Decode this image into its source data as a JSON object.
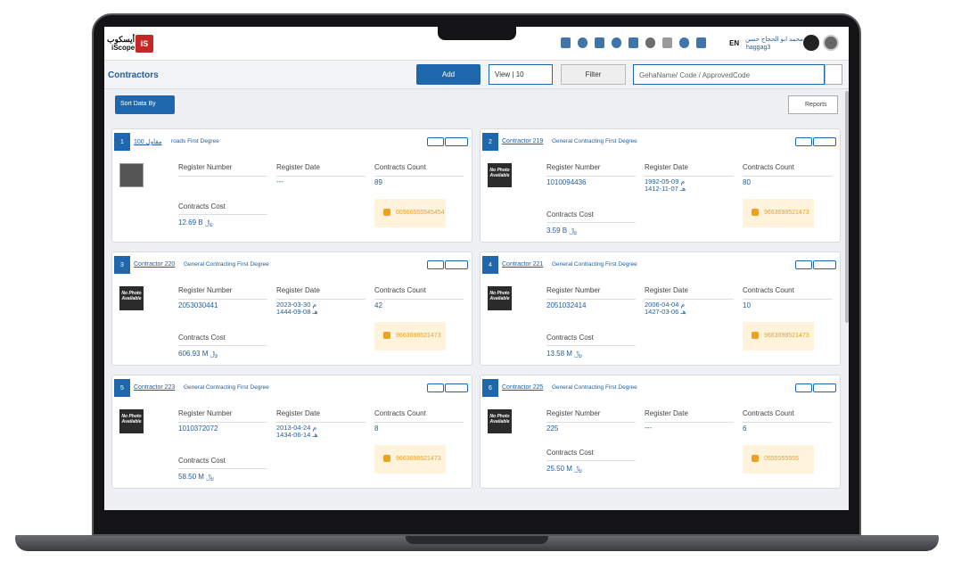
{
  "header": {
    "logo_ar": "أيسكوب",
    "logo_en": "iScope",
    "logo_mark": "iS",
    "lang": "EN",
    "user_name": "محمد ابو الحجاج حسن",
    "username": "haggag3"
  },
  "toolbar": {
    "title": "Contractors",
    "add": "Add",
    "view": "View | 10",
    "filter": "Filter",
    "search_placeholder": "GehaName/ Code / ApprovedCode",
    "sort": "Sort Data By",
    "reports": "Reports"
  },
  "labels": {
    "register_number": "Register Number",
    "register_date": "Register Date",
    "contracts_count": "Contracts Count",
    "contracts_cost": "Contracts Cost",
    "no_photo": "No Photo Available"
  },
  "cards": [
    {
      "index": "1",
      "name": "مقاول 100",
      "type": "roads First Degree",
      "register_number": "",
      "register_date": "---",
      "contracts_count": "89",
      "contracts_cost": "12.69 B ﷼",
      "phone": "00966555545454",
      "photo": "image"
    },
    {
      "index": "2",
      "name": "Contractor 219",
      "type": "General Contracting First Degree",
      "register_number": "1010094436",
      "register_date": [
        "1992-05-09 م",
        "1412-11-07 هـ"
      ],
      "contracts_count": "80",
      "contracts_cost": "3.59 B ﷼",
      "phone": "9663698521473",
      "photo": "none"
    },
    {
      "index": "3",
      "name": "Contractor 220",
      "type": "General Contracting First Degree",
      "register_number": "2053030441",
      "register_date": [
        "2023-03-30 م",
        "1444-09-08 هـ"
      ],
      "contracts_count": "42",
      "contracts_cost": "606.93 M ﷼",
      "phone": "9663698521473",
      "photo": "none"
    },
    {
      "index": "4",
      "name": "Contractor 221",
      "type": "General Contracting First Degree",
      "register_number": "2051032414",
      "register_date": [
        "2006-04-04 م",
        "1427-03-06 هـ"
      ],
      "contracts_count": "10",
      "contracts_cost": "13.58 M ﷼",
      "phone": "9663698521473",
      "photo": "none"
    },
    {
      "index": "5",
      "name": "Contractor 223",
      "type": "General Contracting First Degree",
      "register_number": "1010372072",
      "register_date": [
        "2013-04-24 م",
        "1434-06-14 هـ"
      ],
      "contracts_count": "8",
      "contracts_cost": "58.50 M ﷼",
      "phone": "9663698521473",
      "photo": "none"
    },
    {
      "index": "6",
      "name": "Contractor 225",
      "type": "General Contracting First Degree",
      "register_number": "225",
      "register_date": "---",
      "contracts_count": "6",
      "contracts_cost": "25.50 M ﷼",
      "phone": "0555555555",
      "photo": "none"
    }
  ]
}
